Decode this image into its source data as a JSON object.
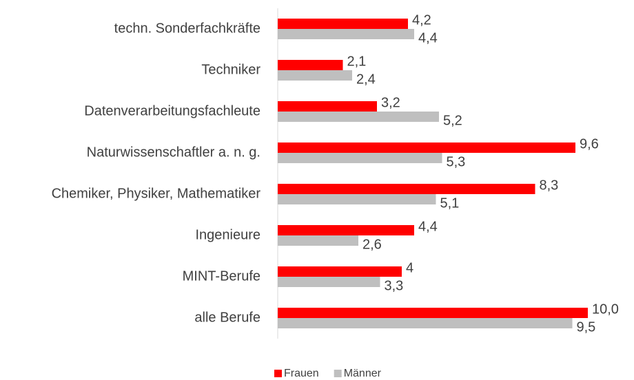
{
  "chart_data": {
    "type": "bar",
    "orientation": "horizontal",
    "categories": [
      "techn. Sonderfachkräfte",
      "Techniker",
      "Datenverarbeitungsfachleute",
      "Naturwissenschaftler a. n. g.",
      "Chemiker, Physiker, Mathematiker",
      "Ingenieure",
      "MINT-Berufe",
      "alle Berufe"
    ],
    "series": [
      {
        "name": "Frauen",
        "color": "#ff0000",
        "values": [
          4.2,
          2.1,
          3.2,
          9.6,
          8.3,
          4.4,
          4,
          10.0
        ],
        "value_labels": [
          "4,2",
          "2,1",
          "3,2",
          "9,6",
          "8,3",
          "4,4",
          "4",
          "10,0"
        ]
      },
      {
        "name": "Männer",
        "color": "#bfbfbf",
        "values": [
          4.4,
          2.4,
          5.2,
          5.3,
          5.1,
          2.6,
          3.3,
          9.5
        ],
        "value_labels": [
          "4,4",
          "2,4",
          "5,2",
          "5,3",
          "5,1",
          "2,6",
          "3,3",
          "9,5"
        ]
      }
    ],
    "legend": "bottom"
  }
}
